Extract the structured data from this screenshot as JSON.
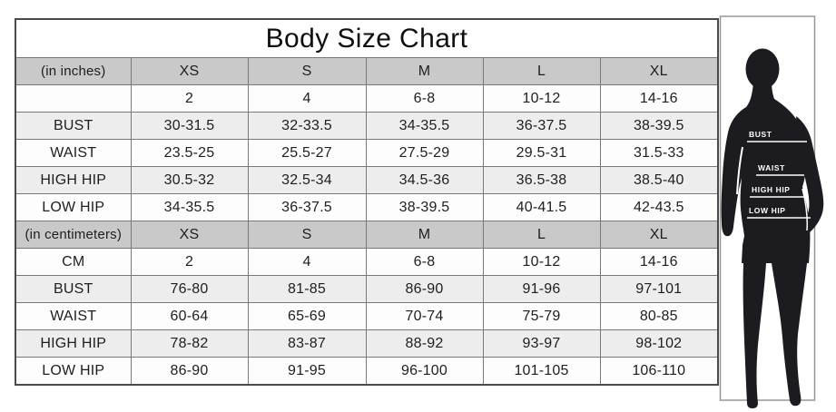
{
  "title": "Body Size Chart",
  "sections": [
    {
      "unit_label": "(in inches)",
      "sizes": [
        "XS",
        "S",
        "M",
        "L",
        "XL"
      ],
      "rows": [
        {
          "label": "",
          "values": [
            "2",
            "4",
            "6-8",
            "10-12",
            "14-16"
          ]
        },
        {
          "label": "BUST",
          "values": [
            "30-31.5",
            "32-33.5",
            "34-35.5",
            "36-37.5",
            "38-39.5"
          ]
        },
        {
          "label": "WAIST",
          "values": [
            "23.5-25",
            "25.5-27",
            "27.5-29",
            "29.5-31",
            "31.5-33"
          ]
        },
        {
          "label": "HIGH HIP",
          "values": [
            "30.5-32",
            "32.5-34",
            "34.5-36",
            "36.5-38",
            "38.5-40"
          ]
        },
        {
          "label": "LOW HIP",
          "values": [
            "34-35.5",
            "36-37.5",
            "38-39.5",
            "40-41.5",
            "42-43.5"
          ]
        }
      ]
    },
    {
      "unit_label": "(in centimeters)",
      "sizes": [
        "XS",
        "S",
        "M",
        "L",
        "XL"
      ],
      "rows": [
        {
          "label": "CM",
          "values": [
            "2",
            "4",
            "6-8",
            "10-12",
            "14-16"
          ]
        },
        {
          "label": "BUST",
          "values": [
            "76-80",
            "81-85",
            "86-90",
            "91-96",
            "97-101"
          ]
        },
        {
          "label": "WAIST",
          "values": [
            "60-64",
            "65-69",
            "70-74",
            "75-79",
            "80-85"
          ]
        },
        {
          "label": "HIGH HIP",
          "values": [
            "78-82",
            "83-87",
            "88-92",
            "93-97",
            "98-102"
          ]
        },
        {
          "label": "LOW HIP",
          "values": [
            "86-90",
            "91-95",
            "96-100",
            "101-105",
            "106-110"
          ]
        }
      ]
    }
  ],
  "figure": {
    "labels": [
      "BUST",
      "WAIST",
      "HIGH HIP",
      "LOW HIP"
    ]
  },
  "colors": {
    "header_bg": "#c9c9c9",
    "alt_row_bg": "#ededed",
    "row_bg": "#fdfdfd",
    "inner_border": "#787878",
    "outer_border": "#4a4a4a",
    "silhouette": "#1c1b20",
    "frame_border": "#979797",
    "label_text": "#ffffff"
  }
}
